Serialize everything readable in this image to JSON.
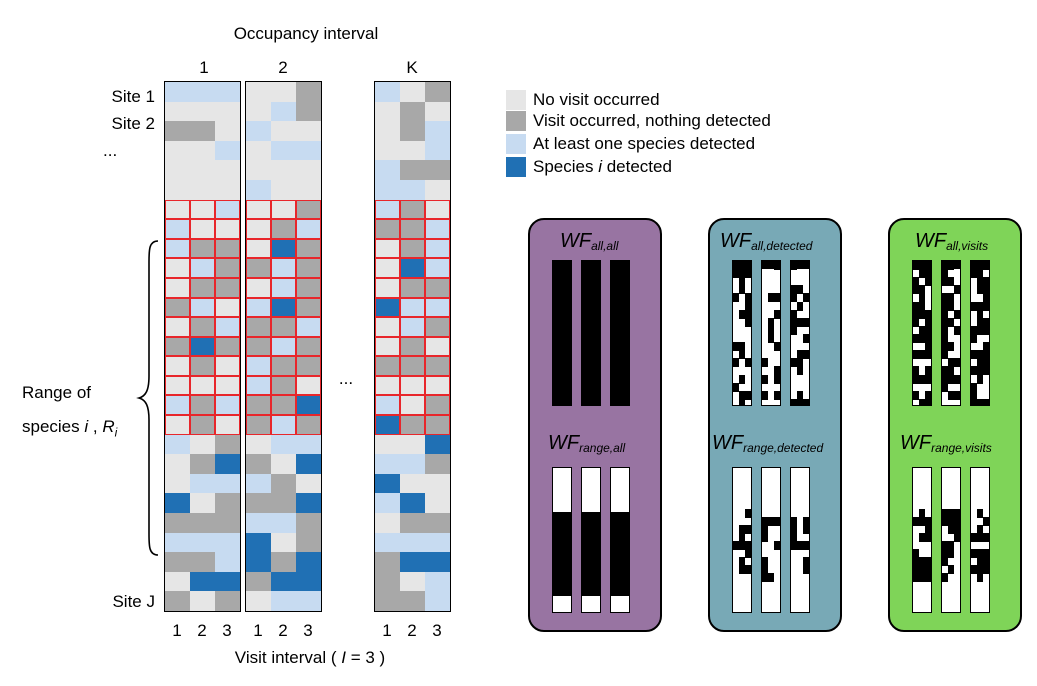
{
  "colors": {
    "no_visit": "#e6e6e6",
    "visit_nothing": "#a8a8a8",
    "visit_some": "#c7dbf1",
    "species_i": "#2070b4",
    "range_border": "#e8262b",
    "panel_all": "#9874a2",
    "panel_detected": "#78a9b6",
    "panel_visits": "#7fd458"
  },
  "header": {
    "title": "Occupancy interval",
    "interval_labels": [
      "1",
      "2",
      "K"
    ],
    "ellipsis": "..."
  },
  "sites": {
    "labels": [
      "Site 1",
      "Site 2",
      "..."
    ],
    "last_label": "Site J"
  },
  "range_label": {
    "line1": "Range of",
    "line2_prefix": "species ",
    "line2_i": "i",
    "line2_sep": " , ",
    "line2_R": "R",
    "line2_sub": "i"
  },
  "footer": {
    "visit_numbers": [
      "1",
      "2",
      "3"
    ],
    "caption_prefix": "Visit interval ( ",
    "caption_I": "I",
    "caption_suffix": " = 3 )"
  },
  "legend": [
    {
      "key": "no_visit",
      "text": "No visit occurred"
    },
    {
      "key": "visit_nothing",
      "text": "Visit occurred, nothing detected"
    },
    {
      "key": "visit_some",
      "text": "At least one species detected"
    },
    {
      "key": "species_i",
      "text_prefix": "Species ",
      "text_italic": "i",
      "text_suffix": " detected"
    }
  ],
  "grid": {
    "codes": {
      "0": "no_visit",
      "1": "visit_nothing",
      "2": "visit_some",
      "3": "species_i"
    },
    "range_rows": [
      6,
      17
    ],
    "intervals": [
      [
        "222",
        "000",
        "110",
        "002",
        "000",
        "000",
        "002",
        "200",
        "211",
        "021",
        "011",
        "120",
        "012",
        "131",
        "010",
        "000",
        "212",
        "010",
        "201",
        "013",
        "022",
        "301",
        "111",
        "222",
        "112",
        "033",
        "101"
      ],
      [
        "001",
        "021",
        "200",
        "022",
        "000",
        "200",
        "001",
        "012",
        "031",
        "121",
        "021",
        "231",
        "112",
        "121",
        "211",
        "210",
        "113",
        "121",
        "022",
        "103",
        "210",
        "113",
        "221",
        "301",
        "313",
        "133",
        "022"
      ],
      [
        "201",
        "010",
        "012",
        "002",
        "211",
        "220",
        "210",
        "112",
        "012",
        "032",
        "011",
        "322",
        "021",
        "010",
        "111",
        "000",
        "201",
        "311",
        "003",
        "221",
        "300",
        "230",
        "011",
        "222",
        "133",
        "102",
        "112"
      ]
    ]
  },
  "panels": [
    {
      "key": "all",
      "top": {
        "wf": "WF",
        "sub": "all,all"
      },
      "bottom": {
        "wf": "WF",
        "sub": "range,all"
      }
    },
    {
      "key": "detected",
      "top": {
        "wf": "WF",
        "sub": "all,detected"
      },
      "bottom": {
        "wf": "WF",
        "sub": "range,detected"
      }
    },
    {
      "key": "visits",
      "top": {
        "wf": "WF",
        "sub": "all,visits"
      },
      "bottom": {
        "wf": "WF",
        "sub": "range,visits"
      }
    }
  ]
}
